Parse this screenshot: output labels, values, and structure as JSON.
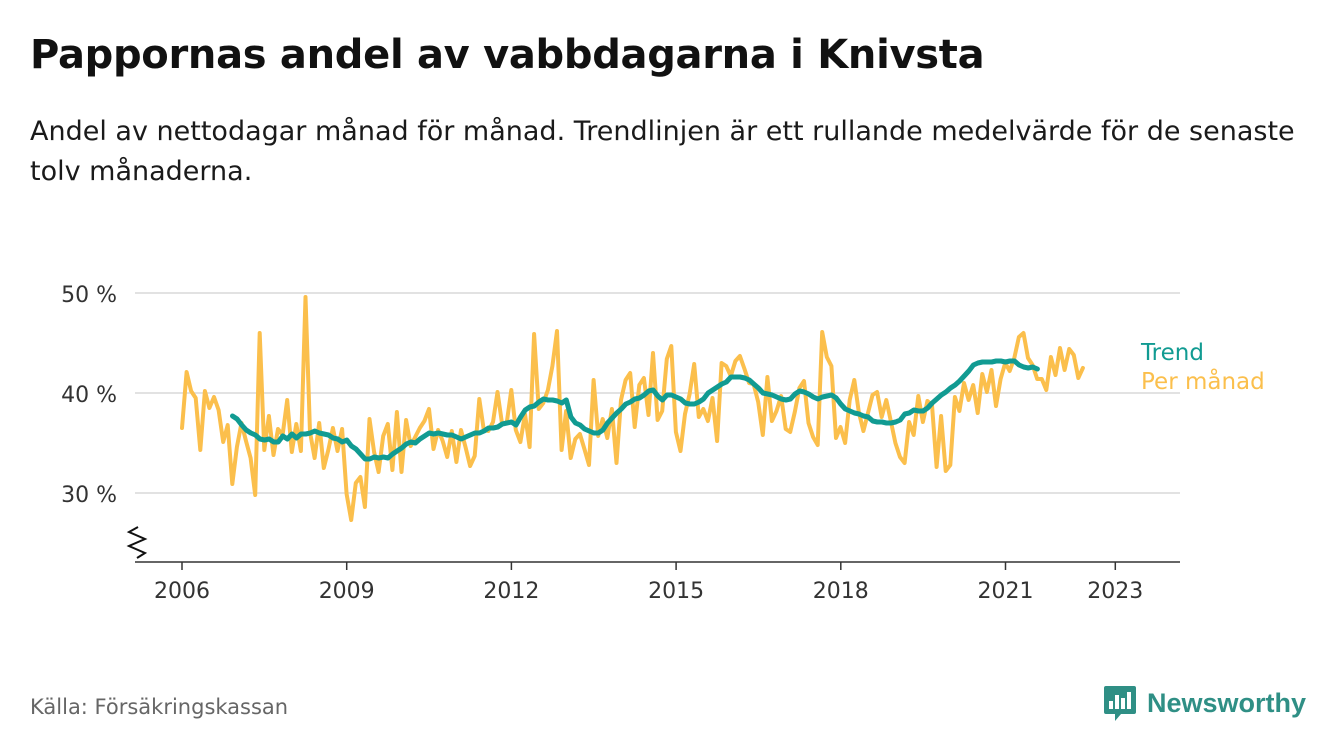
{
  "title": "Pappornas andel av vabbdagarna i Knivsta",
  "subtitle": "Andel av nettodagar månad för månad. Trendlinjen är ett rullande medelvärde för de senaste tolv månaderna.",
  "source": "Källa: Försäkringskassan",
  "brand": {
    "name": "Newsworthy",
    "icon": "newsworthy-logo-icon",
    "color": "#2f8f85"
  },
  "colors": {
    "monthly": "#fbbf4c",
    "trend": "#119b92",
    "grid": "#d9d9d9",
    "axis": "#333333"
  },
  "chart_data": {
    "type": "line",
    "title": "Pappornas andel av vabbdagarna i Knivsta",
    "ylabel": "",
    "xlabel": "",
    "ylim": [
      25,
      50
    ],
    "yticks": [
      30,
      40,
      50
    ],
    "ytick_labels": [
      "30 %",
      "40 %",
      "50 %"
    ],
    "xlim": [
      2005.15,
      2024.2
    ],
    "xticks": [
      2006,
      2009,
      2012,
      2015,
      2018,
      2021,
      2023
    ],
    "xtick_labels": [
      "2006",
      "2009",
      "2012",
      "2015",
      "2018",
      "2021",
      "2023"
    ],
    "axis_break": true,
    "grid": true,
    "legend": "direct labels at line ends",
    "series": [
      {
        "name": "Per månad",
        "color": "#fbbf4c",
        "x_start": 2006.0,
        "x_step": 0.0833,
        "values": [
          36.5,
          42.1,
          40.2,
          39.5,
          34.3,
          40.2,
          38.5,
          39.6,
          38.3,
          35.1,
          36.8,
          30.9,
          34.6,
          37.0,
          35.2,
          33.5,
          29.8,
          46.0,
          34.3,
          37.7,
          33.8,
          36.4,
          35.8,
          39.3,
          34.1,
          36.9,
          34.2,
          49.6,
          36.1,
          33.5,
          37.0,
          32.5,
          34.3,
          36.5,
          34.2,
          36.4,
          29.9,
          27.3,
          31.0,
          31.6,
          28.6,
          37.4,
          34.1,
          32.1,
          35.7,
          36.9,
          32.3,
          38.1,
          32.1,
          37.3,
          34.7,
          35.6,
          36.5,
          37.2,
          38.4,
          34.4,
          36.3,
          35.2,
          33.6,
          36.2,
          33.1,
          36.3,
          34.6,
          32.7,
          33.7,
          39.4,
          36.3,
          36.2,
          37.1,
          40.1,
          36.9,
          37.0,
          40.3,
          36.3,
          35.1,
          37.9,
          34.6,
          45.9,
          38.4,
          39.0,
          40.3,
          42.7,
          46.2,
          34.3,
          38.2,
          33.5,
          35.4,
          35.9,
          34.4,
          32.8,
          41.3,
          35.7,
          37.4,
          35.5,
          38.4,
          33.0,
          39.3,
          41.3,
          42.0,
          36.6,
          40.8,
          41.5,
          37.8,
          44.0,
          37.3,
          38.2,
          43.4,
          44.7,
          36.1,
          34.2,
          37.9,
          39.9,
          42.9,
          37.6,
          38.4,
          37.2,
          39.5,
          35.2,
          43.0,
          42.7,
          41.7,
          43.2,
          43.7,
          42.4,
          41.0,
          40.9,
          39.1,
          35.8,
          41.6,
          37.2,
          38.2,
          39.7,
          36.4,
          36.1,
          38.1,
          40.5,
          41.2,
          37.0,
          35.6,
          34.8,
          46.1,
          43.6,
          42.7,
          35.5,
          36.6,
          35.0,
          39.3,
          41.3,
          38.1,
          36.2,
          38.0,
          39.8,
          40.1,
          37.6,
          39.3,
          37.2,
          35.0,
          33.6,
          33.0,
          37.1,
          35.8,
          39.7,
          37.1,
          39.2,
          38.8,
          32.6,
          37.7,
          32.2,
          32.8,
          39.6,
          38.2,
          41.0,
          39.3,
          40.8,
          38.0,
          41.9,
          40.1,
          42.3,
          38.7,
          41.4,
          43.0,
          42.2,
          43.5,
          45.6,
          46.0,
          43.5,
          42.8,
          41.4,
          41.4,
          40.3,
          43.6,
          41.8,
          44.5,
          42.3,
          44.4,
          43.8,
          41.5,
          42.5
        ]
      },
      {
        "name": "Trend",
        "color": "#119b92",
        "x_start": 2006.92,
        "x_step": 0.0833,
        "values": [
          37.7,
          37.4,
          36.8,
          36.3,
          36.0,
          35.8,
          35.4,
          35.3,
          35.4,
          35.1,
          35.1,
          35.7,
          35.4,
          35.9,
          35.5,
          35.9,
          35.9,
          36.0,
          36.2,
          36.0,
          35.9,
          35.8,
          35.5,
          35.4,
          35.1,
          35.3,
          34.7,
          34.4,
          33.9,
          33.4,
          33.4,
          33.6,
          33.5,
          33.6,
          33.5,
          33.9,
          34.2,
          34.5,
          34.9,
          35.1,
          35.0,
          35.4,
          35.7,
          36.0,
          35.9,
          36.0,
          35.9,
          35.8,
          35.8,
          35.6,
          35.4,
          35.6,
          35.8,
          36.0,
          36.0,
          36.2,
          36.5,
          36.5,
          36.6,
          36.9,
          37.0,
          37.1,
          36.8,
          37.6,
          38.3,
          38.6,
          38.7,
          39.1,
          39.4,
          39.3,
          39.3,
          39.2,
          39.0,
          39.3,
          37.6,
          37.0,
          36.8,
          36.4,
          36.2,
          36.0,
          36.0,
          36.3,
          37.0,
          37.5,
          38.0,
          38.4,
          38.9,
          39.1,
          39.4,
          39.5,
          39.8,
          40.2,
          40.3,
          39.7,
          39.3,
          39.8,
          39.8,
          39.6,
          39.4,
          39.0,
          38.9,
          38.9,
          39.1,
          39.4,
          40.0,
          40.3,
          40.6,
          40.9,
          41.1,
          41.6,
          41.6,
          41.6,
          41.5,
          41.3,
          40.9,
          40.5,
          40.0,
          39.9,
          39.8,
          39.6,
          39.4,
          39.3,
          39.4,
          39.9,
          40.2,
          40.1,
          39.9,
          39.6,
          39.4,
          39.6,
          39.7,
          39.8,
          39.5,
          38.9,
          38.4,
          38.2,
          38.0,
          37.9,
          37.7,
          37.6,
          37.2,
          37.1,
          37.1,
          37.0,
          37.0,
          37.1,
          37.3,
          37.9,
          38.0,
          38.3,
          38.2,
          38.2,
          38.5,
          39.0,
          39.4,
          39.8,
          40.1,
          40.5,
          40.8,
          41.2,
          41.7,
          42.2,
          42.8,
          43.0,
          43.1,
          43.1,
          43.1,
          43.2,
          43.2,
          43.1,
          43.2,
          43.2,
          42.8,
          42.6,
          42.5,
          42.6,
          42.4
        ]
      }
    ]
  }
}
